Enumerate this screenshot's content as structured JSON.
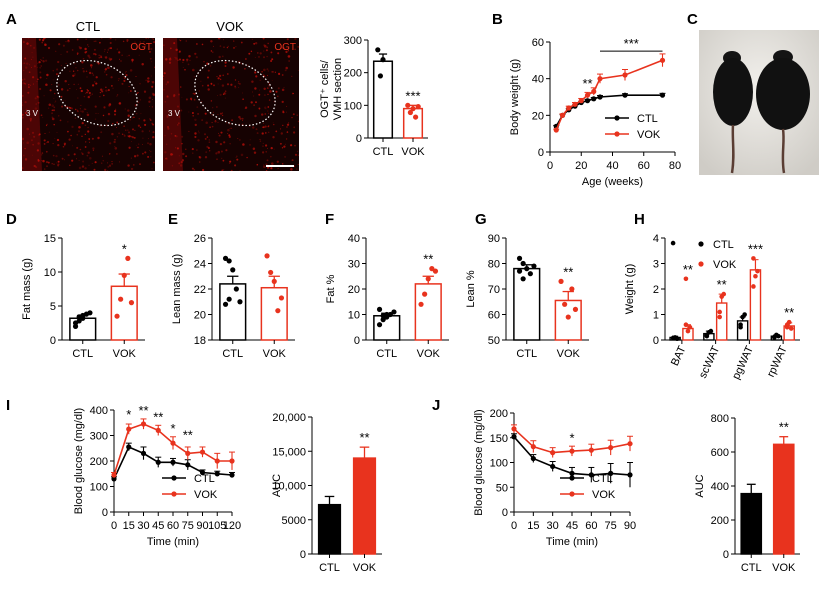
{
  "panel_letters": [
    "A",
    "B",
    "C",
    "D",
    "E",
    "F",
    "G",
    "H",
    "I",
    "J"
  ],
  "images": {
    "ctl_label": "CTL",
    "vok_label": "VOK",
    "stain_label": "OGT",
    "region_label": "3 V"
  },
  "colors": {
    "ctl": "#000000",
    "vok": "#e8331e",
    "micro_red": "#c0100a"
  },
  "chart_data": [
    {
      "id": "A",
      "type": "bar",
      "categories": [
        "CTL",
        "VOK"
      ],
      "values": [
        235,
        90
      ],
      "errors": [
        22,
        10
      ],
      "points": [
        [
          270,
          190,
          240
        ],
        [
          100,
          78,
          90,
          64,
          96
        ]
      ],
      "ylabel": [
        "OGT⁺ cells/",
        "VMH section"
      ],
      "ylim": [
        0,
        300
      ],
      "yticks": [
        0,
        100,
        200,
        300
      ],
      "annotations": [
        {
          "cat": 1,
          "text": "***"
        }
      ]
    },
    {
      "id": "B",
      "type": "line",
      "xlabel": "Age (weeks)",
      "ylabel": "Body weight (g)",
      "xlim": [
        0,
        80
      ],
      "ylim": [
        0,
        60
      ],
      "xticks": [
        0,
        20,
        40,
        60,
        80
      ],
      "yticks": [
        0,
        20,
        40,
        60
      ],
      "series": [
        {
          "name": "CTL",
          "color": "ctl",
          "x": [
            4,
            8,
            12,
            16,
            20,
            24,
            28,
            32,
            48,
            72
          ],
          "y": [
            14,
            20,
            23,
            25,
            27,
            28,
            29,
            30,
            31,
            31
          ],
          "err": [
            0.5,
            0.5,
            0.6,
            0.6,
            0.6,
            0.7,
            0.7,
            0.8,
            0.8,
            1
          ]
        },
        {
          "name": "VOK",
          "color": "vok",
          "x": [
            4,
            8,
            12,
            16,
            20,
            24,
            28,
            32,
            48,
            72
          ],
          "y": [
            12,
            20,
            24,
            26,
            28,
            31,
            33,
            40,
            42,
            50
          ],
          "err": [
            0.5,
            0.8,
            1,
            1,
            1.2,
            1.5,
            2,
            2.5,
            3,
            3.5
          ]
        }
      ],
      "annotations": [
        {
          "x": 24,
          "y": 35,
          "text": "**"
        },
        {
          "bracket": [
            32,
            72
          ],
          "y": 55,
          "text": "***"
        }
      ],
      "legend": "bottom-right"
    },
    {
      "id": "D",
      "type": "bar",
      "categories": [
        "CTL",
        "VOK"
      ],
      "values": [
        3.2,
        7.9
      ],
      "errors": [
        0.4,
        1.8
      ],
      "points": [
        [
          2,
          2.8,
          3.2,
          3.8,
          4,
          2.5,
          3.4,
          3.6
        ],
        [
          3.5,
          6,
          9.5,
          12,
          5.5
        ]
      ],
      "ylabel": "Fat mass (g)",
      "ylim": [
        0,
        15
      ],
      "yticks": [
        0,
        5,
        10,
        15
      ],
      "annotations": [
        {
          "cat": 1,
          "text": "*"
        }
      ]
    },
    {
      "id": "E",
      "type": "bar",
      "categories": [
        "CTL",
        "VOK"
      ],
      "values": [
        22.4,
        22.1
      ],
      "errors": [
        0.6,
        0.9
      ],
      "points": [
        [
          24.4,
          24.2,
          23.5,
          22,
          21,
          20.8,
          21.2
        ],
        [
          24.6,
          23.3,
          22.6,
          20.3,
          21.3
        ]
      ],
      "ylabel": "Lean mass (g)",
      "ylim": [
        18,
        26
      ],
      "yticks": [
        18,
        20,
        22,
        24,
        26
      ],
      "annotations": []
    },
    {
      "id": "F",
      "type": "bar",
      "categories": [
        "CTL",
        "VOK"
      ],
      "values": [
        9.5,
        22
      ],
      "errors": [
        1,
        3
      ],
      "points": [
        [
          6,
          8,
          9,
          10,
          11,
          12,
          9.5,
          10
        ],
        [
          14,
          18,
          24,
          28,
          27
        ]
      ],
      "ylabel": "Fat %",
      "ylim": [
        0,
        40
      ],
      "yticks": [
        0,
        10,
        20,
        30,
        40
      ],
      "annotations": [
        {
          "cat": 1,
          "text": "**"
        }
      ]
    },
    {
      "id": "G",
      "type": "bar",
      "categories": [
        "CTL",
        "VOK"
      ],
      "values": [
        78,
        65.5
      ],
      "errors": [
        1.5,
        3.5
      ],
      "points": [
        [
          82,
          80,
          78,
          76,
          79,
          77,
          74
        ],
        [
          73,
          64,
          59,
          70,
          62
        ]
      ],
      "ylabel": "Lean %",
      "ylim": [
        50,
        90
      ],
      "yticks": [
        50,
        60,
        70,
        80,
        90
      ],
      "annotations": [
        {
          "cat": 1,
          "text": "**"
        }
      ]
    },
    {
      "id": "H",
      "type": "bar",
      "categories": [
        "BAT",
        "scWAT",
        "pgWAT",
        "rpWAT"
      ],
      "ylabel": "Weight (g)",
      "ylim": [
        0,
        4
      ],
      "yticks": [
        0,
        1,
        2,
        3,
        4
      ],
      "series": [
        {
          "name": "CTL",
          "color": "ctl",
          "values": [
            0.1,
            0.25,
            0.75,
            0.15
          ],
          "errors": [
            0.05,
            0.1,
            0.15,
            0.05
          ],
          "points": [
            [
              3.8,
              0.1,
              0.05,
              0.08
            ],
            [
              0.2,
              0.3,
              0.35,
              0.15
            ],
            [
              0.5,
              0.9,
              1.0,
              0.6
            ],
            [
              0.1,
              0.2,
              0.15,
              0.12
            ]
          ]
        },
        {
          "name": "VOK",
          "color": "vok",
          "values": [
            0.45,
            1.45,
            2.75,
            0.55
          ],
          "errors": [
            0.15,
            0.35,
            0.4,
            0.12
          ],
          "points": [
            [
              2.4,
              0.35,
              0.5,
              0.6
            ],
            [
              1.1,
              1.7,
              1.8,
              0.9
            ],
            [
              3.2,
              2.5,
              2.7,
              2.1
            ],
            [
              0.5,
              0.7,
              0.45,
              0.6
            ]
          ]
        }
      ],
      "annotations": [
        {
          "cat": 0,
          "text": "**"
        },
        {
          "cat": 1,
          "text": "**"
        },
        {
          "cat": 2,
          "text": "***"
        },
        {
          "cat": 3,
          "text": "**"
        }
      ],
      "legend": "top-right"
    },
    {
      "id": "I",
      "type": "line",
      "xlabel": "Time (min)",
      "ylabel": "Blood glucose (mg/dl)",
      "xlim": [
        0,
        120
      ],
      "ylim": [
        0,
        400
      ],
      "xticks": [
        0,
        15,
        30,
        45,
        60,
        75,
        90,
        105,
        120
      ],
      "yticks": [
        0,
        100,
        200,
        300,
        400
      ],
      "series": [
        {
          "name": "CTL",
          "color": "ctl",
          "x": [
            0,
            15,
            30,
            45,
            60,
            75,
            90,
            105,
            120
          ],
          "y": [
            130,
            255,
            230,
            195,
            195,
            185,
            155,
            150,
            145
          ],
          "err": [
            8,
            15,
            25,
            20,
            15,
            20,
            10,
            10,
            10
          ]
        },
        {
          "name": "VOK",
          "color": "vok",
          "x": [
            0,
            15,
            30,
            45,
            60,
            75,
            90,
            105,
            120
          ],
          "y": [
            145,
            325,
            345,
            320,
            270,
            230,
            235,
            200,
            200
          ],
          "err": [
            10,
            20,
            20,
            20,
            25,
            25,
            20,
            30,
            35
          ]
        }
      ],
      "annotations": [
        {
          "x": 15,
          "y": 365,
          "text": "*"
        },
        {
          "x": 30,
          "y": 380,
          "text": "**"
        },
        {
          "x": 45,
          "y": 355,
          "text": "**"
        },
        {
          "x": 60,
          "y": 310,
          "text": "*"
        },
        {
          "x": 75,
          "y": 285,
          "text": "**"
        }
      ],
      "legend": "bottom-right"
    },
    {
      "id": "I2",
      "type": "bar",
      "categories": [
        "CTL",
        "VOK"
      ],
      "values": [
        7200,
        14000
      ],
      "errors": [
        1200,
        1600
      ],
      "ylabel": "AUC",
      "ylim": [
        0,
        20000
      ],
      "yticks": [
        "0",
        "5000",
        "10,000",
        "15,000",
        "20,000"
      ],
      "ytick_values": [
        0,
        5000,
        10000,
        15000,
        20000
      ],
      "annotations": [
        {
          "cat": 1,
          "text": "**"
        }
      ],
      "filled": true
    },
    {
      "id": "J",
      "type": "line",
      "xlabel": "Time (min)",
      "ylabel": "Blood glucose (mg/dl)",
      "xlim": [
        0,
        90
      ],
      "ylim": [
        0,
        200
      ],
      "xticks": [
        0,
        15,
        30,
        45,
        60,
        75,
        90
      ],
      "yticks": [
        0,
        50,
        100,
        150,
        200
      ],
      "series": [
        {
          "name": "CTL",
          "color": "ctl",
          "x": [
            0,
            15,
            30,
            45,
            60,
            75,
            90
          ],
          "y": [
            152,
            108,
            92,
            78,
            75,
            78,
            75
          ],
          "err": [
            6,
            8,
            10,
            12,
            15,
            20,
            25
          ]
        },
        {
          "name": "VOK",
          "color": "vok",
          "x": [
            0,
            15,
            30,
            45,
            60,
            75,
            90
          ],
          "y": [
            168,
            132,
            120,
            123,
            125,
            130,
            138
          ],
          "err": [
            8,
            12,
            10,
            10,
            12,
            15,
            15
          ]
        }
      ],
      "annotations": [
        {
          "x": 45,
          "y": 140,
          "text": "*"
        }
      ],
      "legend": "bottom-right"
    },
    {
      "id": "J2",
      "type": "bar",
      "categories": [
        "CTL",
        "VOK"
      ],
      "values": [
        355,
        645
      ],
      "errors": [
        55,
        45
      ],
      "ylabel": "AUC",
      "ylim": [
        0,
        800
      ],
      "yticks": [
        "0",
        "200",
        "400",
        "600",
        "800"
      ],
      "ytick_values": [
        0,
        200,
        400,
        600,
        800
      ],
      "annotations": [
        {
          "cat": 1,
          "text": "**"
        }
      ],
      "filled": true
    }
  ]
}
